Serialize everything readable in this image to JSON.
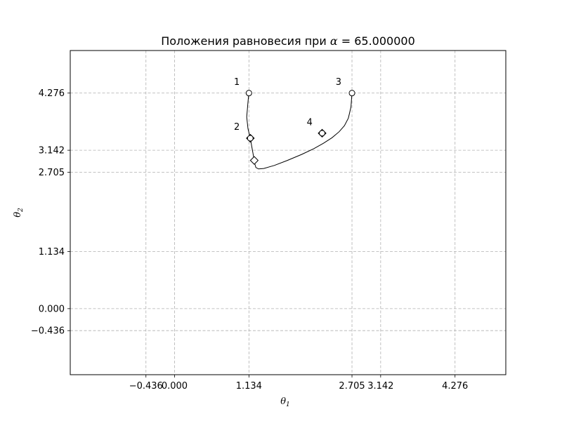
{
  "chart_data": {
    "type": "line",
    "title": "Положения равновесия при α = 65.000000",
    "title_prefix": "Положения равновесия при ",
    "title_symbol": "α",
    "title_suffix": " = 65.000000",
    "xlabel": "θ",
    "xlabel_sub": "1",
    "ylabel": "θ",
    "ylabel_sub": "2",
    "xlim": [
      -1.59,
      5.05
    ],
    "ylim": [
      -1.31,
      5.12
    ],
    "grid": true,
    "grid_style": "dashed",
    "x_ticks": [
      -0.436,
      0.0,
      1.134,
      2.705,
      3.142,
      4.276
    ],
    "x_tick_labels": [
      "−0.436",
      "0.000",
      "1.134",
      "2.705",
      "3.142",
      "4.276"
    ],
    "y_ticks": [
      4.276,
      3.142,
      2.705,
      1.134,
      0.0,
      -0.436
    ],
    "y_tick_labels": [
      "4.276",
      "3.142",
      "2.705",
      "1.134",
      "0.000",
      "−0.436"
    ],
    "curve": [
      [
        1.134,
        4.276
      ],
      [
        1.12,
        4.1
      ],
      [
        1.1,
        3.8
      ],
      [
        1.12,
        3.57
      ],
      [
        1.155,
        3.38
      ],
      [
        1.18,
        3.2
      ],
      [
        1.2,
        3.05
      ],
      [
        1.215,
        2.94
      ],
      [
        1.225,
        2.87
      ],
      [
        1.24,
        2.8
      ],
      [
        1.28,
        2.77
      ],
      [
        1.36,
        2.78
      ],
      [
        1.52,
        2.84
      ],
      [
        1.72,
        2.94
      ],
      [
        1.94,
        3.06
      ],
      [
        2.12,
        3.17
      ],
      [
        2.27,
        3.28
      ],
      [
        2.4,
        3.39
      ],
      [
        2.51,
        3.51
      ],
      [
        2.59,
        3.63
      ],
      [
        2.65,
        3.78
      ],
      [
        2.69,
        4.0
      ],
      [
        2.705,
        4.276
      ]
    ],
    "markers": {
      "circles": [
        [
          1.134,
          4.276
        ],
        [
          2.705,
          4.276
        ],
        [
          1.155,
          3.38
        ],
        [
          2.25,
          3.48
        ]
      ],
      "diamonds": [
        [
          1.155,
          3.38
        ],
        [
          2.25,
          3.48
        ],
        [
          1.215,
          2.94
        ]
      ]
    },
    "annotations": [
      {
        "text": "1",
        "x": 0.95,
        "y": 4.44
      },
      {
        "text": "2",
        "x": 0.95,
        "y": 3.55
      },
      {
        "text": "3",
        "x": 2.5,
        "y": 4.44
      },
      {
        "text": "4",
        "x": 2.06,
        "y": 3.64
      }
    ]
  }
}
